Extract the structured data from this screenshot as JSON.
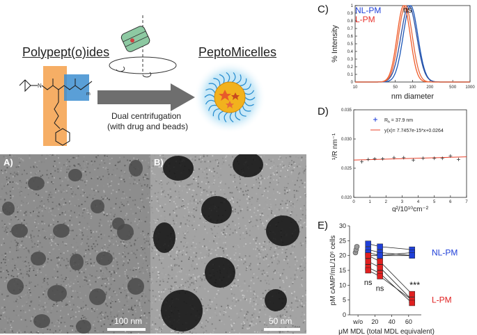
{
  "scheme": {
    "left_title": "Polypept(o)ides",
    "right_title": "PeptoMicelles",
    "process_line1": "Dual centrifugation",
    "process_line2": "(with drug and beads)",
    "chem_n": "N",
    "chem_m": "m"
  },
  "micrographs": {
    "a": {
      "label": "A)",
      "scale": "100 nm"
    },
    "b": {
      "label": "B)",
      "scale": "50 nm"
    }
  },
  "chart_data": [
    {
      "panel": "C)",
      "type": "line",
      "title": "",
      "xlabel": "nm diameter",
      "ylabel": "% Intensity",
      "x_scale": "log",
      "xlim": [
        10,
        1000
      ],
      "ylim": [
        0,
        1
      ],
      "x_ticks": [
        "10",
        "50",
        "100",
        "200",
        "500",
        "1000"
      ],
      "y_ticks": [
        "0",
        "0.1",
        "0.2",
        "0.3",
        "0.4",
        "0.5",
        "0.6",
        "0.7",
        "0.8",
        "0.9",
        "1"
      ],
      "annotation": "ns",
      "legend": [
        "NL-PM",
        "L-PM"
      ],
      "series": [
        {
          "name": "NL-PM",
          "color": "#1a56b8",
          "peak_nm": 92,
          "width": 0.29
        },
        {
          "name": "NL-PM",
          "color": "#2c4fa0",
          "peak_nm": 86,
          "width": 0.31
        },
        {
          "name": "L-PM",
          "color": "#f05a28",
          "peak_nm": 70,
          "width": 0.26
        },
        {
          "name": "L-PM",
          "color": "#e8663a",
          "peak_nm": 75,
          "width": 0.27
        }
      ]
    },
    {
      "panel": "D)",
      "type": "scatter",
      "xlabel": "q²/10¹⁰cm⁻²",
      "ylabel": "¹/R nm⁻¹",
      "xlim": [
        0,
        7
      ],
      "ylim": [
        0.02,
        0.035
      ],
      "x_ticks": [
        "0",
        "1",
        "2",
        "3",
        "4",
        "5",
        "6",
        "7"
      ],
      "y_ticks": [
        "0.020",
        "0.025",
        "0.030",
        "0.035"
      ],
      "legend_points": "R",
      "legend_points_sub": "h",
      "legend_points_value": "= 37.9 nm",
      "legend_fit": "y(x)= 7.7457e-15*x+0.0264",
      "points": [
        [
          0.5,
          0.0261
        ],
        [
          0.9,
          0.0265
        ],
        [
          1.3,
          0.0266
        ],
        [
          1.8,
          0.0266
        ],
        [
          2.5,
          0.0268
        ],
        [
          3.1,
          0.0268
        ],
        [
          3.7,
          0.0264
        ],
        [
          4.3,
          0.0267
        ],
        [
          5.0,
          0.0267
        ],
        [
          5.5,
          0.0267
        ],
        [
          6.0,
          0.0271
        ],
        [
          6.5,
          0.0265
        ]
      ],
      "fit": {
        "slope": 7.7457e-05,
        "intercept": 0.0264
      }
    },
    {
      "panel": "E)",
      "type": "scatter",
      "xlabel": "μM MDL (total MDL equivalent)",
      "ylabel": "pM cAMP/mL/10⁶ cells",
      "xlim": [
        -10,
        75
      ],
      "ylim": [
        0,
        30
      ],
      "x_ticks": [
        "w/o",
        "20",
        "40",
        "60"
      ],
      "y_ticks": [
        "0",
        "5",
        "10",
        "15",
        "20",
        "25",
        "30"
      ],
      "labels": [
        "NL-PM",
        "L-PM"
      ],
      "annotations": [
        "ns",
        "ns",
        "***"
      ],
      "control": [
        21,
        22,
        23
      ],
      "series": [
        {
          "name": "NL-PM",
          "color": "#1f3fd8",
          "x": [
            12,
            26,
            64
          ],
          "points": [
            [
              12,
              24
            ],
            [
              12,
              22
            ],
            [
              12,
              21
            ],
            [
              12,
              20
            ],
            [
              26,
              23
            ],
            [
              26,
              21
            ],
            [
              26,
              20
            ],
            [
              64,
              22
            ],
            [
              64,
              21
            ],
            [
              64,
              20
            ]
          ]
        },
        {
          "name": "L-PM",
          "color": "#e02020",
          "x": [
            12,
            26,
            64
          ],
          "points": [
            [
              12,
              20
            ],
            [
              12,
              18
            ],
            [
              12,
              16
            ],
            [
              12,
              15
            ],
            [
              26,
              18
            ],
            [
              26,
              16
            ],
            [
              26,
              14
            ],
            [
              26,
              13
            ],
            [
              64,
              7
            ],
            [
              64,
              5
            ],
            [
              64,
              4
            ]
          ]
        }
      ]
    }
  ]
}
